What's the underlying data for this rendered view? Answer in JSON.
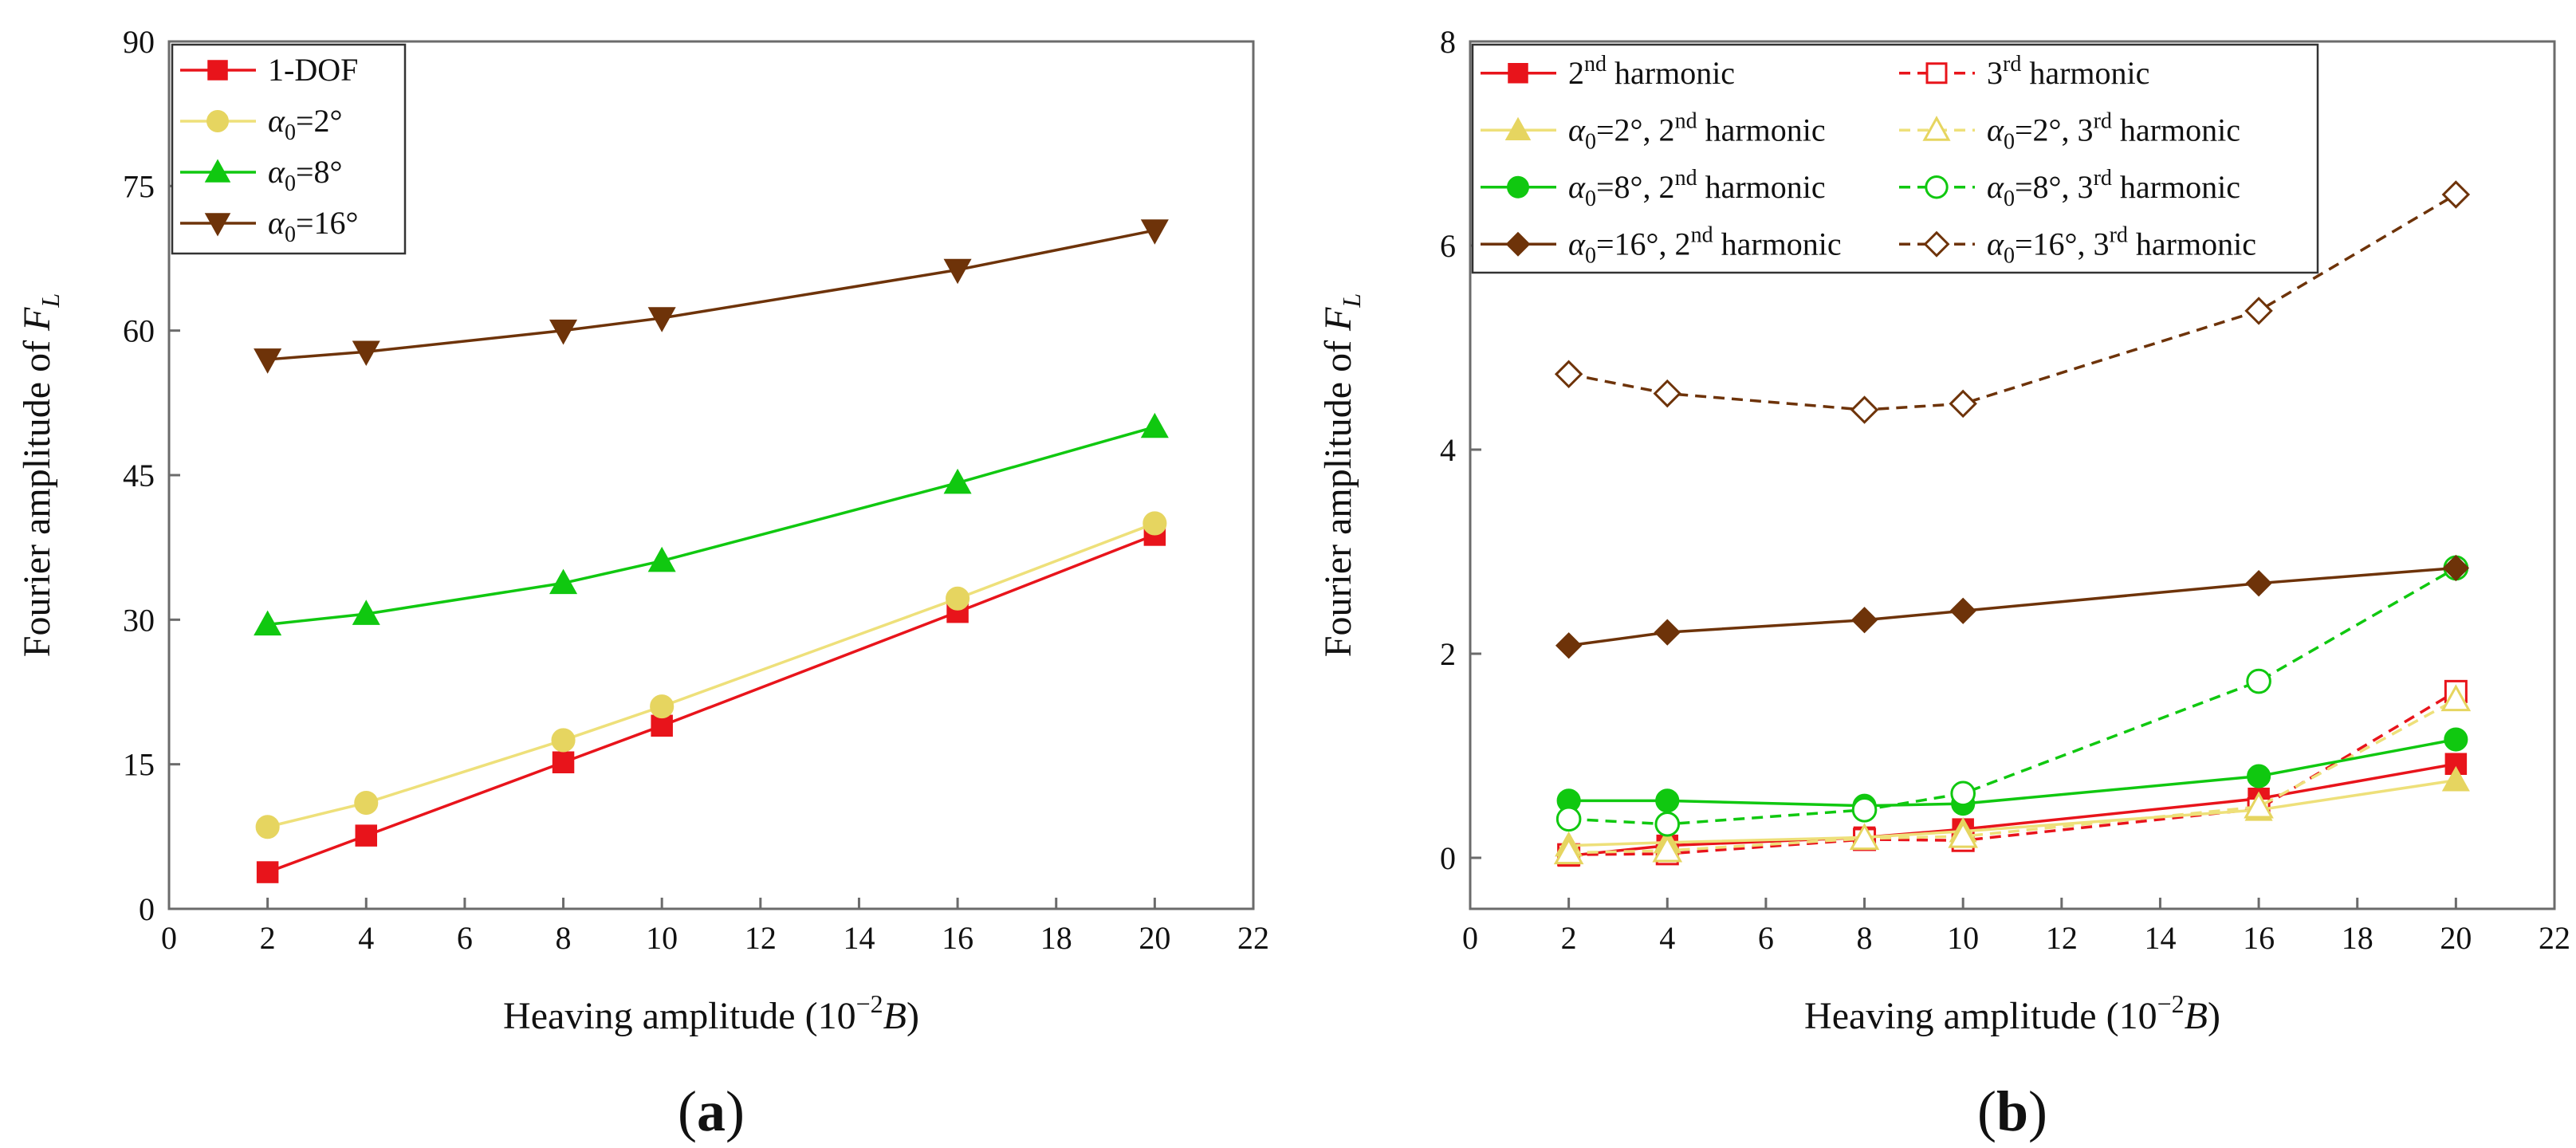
{
  "chart_data": [
    {
      "type": "line",
      "panel_label": "(a)",
      "xlabel": "Heaving amplitude (10−2B)",
      "xlabel_parts": {
        "prefix": "Heaving amplitude (10",
        "exponent": "−2",
        "italic": "B",
        "suffix": ")"
      },
      "ylabel": "Fourier amplitude of FL",
      "ylabel_parts": {
        "prefix": "Fourier amplitude of ",
        "italic": "F",
        "subscript": "L"
      },
      "xlim": [
        0,
        22
      ],
      "ylim": [
        0,
        90
      ],
      "xticks": [
        "0",
        "2",
        "4",
        "6",
        "8",
        "10",
        "12",
        "14",
        "16",
        "18",
        "20",
        "22"
      ],
      "yticks": [
        "0",
        "15",
        "30",
        "45",
        "60",
        "75",
        "90"
      ],
      "grid": false,
      "legend_position": "top-left",
      "x": [
        2,
        4,
        8,
        10,
        16,
        20
      ],
      "series": [
        {
          "name": "1-DOF",
          "legend": {
            "text": "1-DOF"
          },
          "color": "#e8141b",
          "marker": "square",
          "filled": true,
          "dash": false,
          "values": [
            3.8,
            7.6,
            15.2,
            19.0,
            30.8,
            38.8
          ]
        },
        {
          "name": "α0=2°",
          "legend": {
            "greek": "α",
            "sub": "0",
            "rest": "=2°"
          },
          "color": "#eee07a",
          "marker_color": "#e6d560",
          "marker": "circle",
          "filled": true,
          "dash": false,
          "values": [
            8.5,
            11.0,
            17.5,
            21.0,
            32.2,
            40.0
          ]
        },
        {
          "name": "α0=8°",
          "legend": {
            "greek": "α",
            "sub": "0",
            "rest": "=8°"
          },
          "color": "#10c810",
          "marker": "triangle-up",
          "filled": true,
          "dash": false,
          "values": [
            29.5,
            30.6,
            33.8,
            36.1,
            44.2,
            50.0
          ]
        },
        {
          "name": "α0=16°",
          "legend": {
            "greek": "α",
            "sub": "0",
            "rest": "=16°"
          },
          "color": "#6e3309",
          "marker": "triangle-down",
          "filled": true,
          "dash": false,
          "values": [
            57.0,
            57.8,
            60.0,
            61.3,
            66.3,
            70.4
          ]
        }
      ]
    },
    {
      "type": "line",
      "panel_label": "(b)",
      "xlabel": "Heaving amplitude (10−2B)",
      "xlabel_parts": {
        "prefix": "Heaving amplitude (10",
        "exponent": "−2",
        "italic": "B",
        "suffix": ")"
      },
      "ylabel": "Fourier amplitude of FL",
      "ylabel_parts": {
        "prefix": "Fourier amplitude of ",
        "italic": "F",
        "subscript": "L"
      },
      "xlim": [
        0,
        22
      ],
      "ylim": [
        -0.5,
        8
      ],
      "xticks": [
        "0",
        "2",
        "4",
        "6",
        "8",
        "10",
        "12",
        "14",
        "16",
        "18",
        "20",
        "22"
      ],
      "yticks": [
        "0",
        "2",
        "4",
        "6",
        "8"
      ],
      "grid": false,
      "legend_position": "top-left",
      "x": [
        2,
        4,
        8,
        10,
        16,
        20
      ],
      "series": [
        {
          "name": "2nd harmonic",
          "legend": {
            "pre": "2",
            "sup": "nd",
            "post": " harmonic"
          },
          "color": "#e8141b",
          "marker": "square",
          "filled": true,
          "dash": false,
          "values": [
            0.02,
            0.12,
            0.2,
            0.28,
            0.58,
            0.92
          ]
        },
        {
          "name": "3rd harmonic",
          "legend": {
            "pre": "3",
            "sup": "rd",
            "post": " harmonic"
          },
          "color": "#e8141b",
          "marker": "square",
          "filled": false,
          "dash": true,
          "values": [
            0.03,
            0.04,
            0.18,
            0.17,
            0.48,
            1.63
          ]
        },
        {
          "name": "α0=2°, 2nd harmonic",
          "legend": {
            "greek": "α",
            "sub": "0",
            "rest": "=2°, 2",
            "sup": "nd",
            "post": " harmonic"
          },
          "color": "#eee07a",
          "marker_color": "#e6d560",
          "marker": "triangle-up",
          "filled": true,
          "dash": false,
          "values": [
            0.12,
            0.15,
            0.2,
            0.26,
            0.47,
            0.76
          ]
        },
        {
          "name": "α0=2°, 3rd harmonic",
          "legend": {
            "greek": "α",
            "sub": "0",
            "rest": "=2°, 3",
            "sup": "rd",
            "post": " harmonic"
          },
          "color": "#eee07a",
          "marker_color": "#e6d560",
          "marker": "triangle-up",
          "filled": false,
          "dash": true,
          "values": [
            0.05,
            0.07,
            0.19,
            0.21,
            0.5,
            1.55
          ]
        },
        {
          "name": "α0=8°, 2nd harmonic",
          "legend": {
            "greek": "α",
            "sub": "0",
            "rest": "=8°, 2",
            "sup": "nd",
            "post": " harmonic"
          },
          "color": "#10c810",
          "marker": "circle",
          "filled": true,
          "dash": false,
          "values": [
            0.56,
            0.56,
            0.51,
            0.53,
            0.8,
            1.16
          ]
        },
        {
          "name": "α0=8°, 3rd harmonic",
          "legend": {
            "greek": "α",
            "sub": "0",
            "rest": "=8°, 3",
            "sup": "rd",
            "post": " harmonic"
          },
          "color": "#10c810",
          "marker": "circle",
          "filled": false,
          "dash": true,
          "values": [
            0.38,
            0.33,
            0.47,
            0.63,
            1.73,
            2.84
          ]
        },
        {
          "name": "α0=16°, 2nd harmonic",
          "legend": {
            "greek": "α",
            "sub": "0",
            "rest": "=16°, 2",
            "sup": "nd",
            "post": " harmonic"
          },
          "color": "#6e3309",
          "marker": "diamond",
          "filled": true,
          "dash": false,
          "values": [
            2.08,
            2.21,
            2.33,
            2.42,
            2.69,
            2.84
          ]
        },
        {
          "name": "α0=16°, 3rd harmonic",
          "legend": {
            "greek": "α",
            "sub": "0",
            "rest": "=16°, 3",
            "sup": "rd",
            "post": " harmonic"
          },
          "color": "#6e3309",
          "marker": "diamond",
          "filled": false,
          "dash": true,
          "values": [
            4.74,
            4.55,
            4.39,
            4.45,
            5.36,
            6.5
          ]
        }
      ]
    }
  ]
}
